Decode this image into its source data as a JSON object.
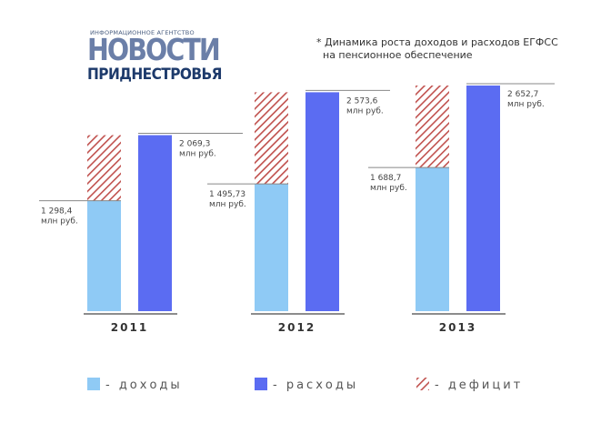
{
  "logo": {
    "small": "ИНФОРМАЦИОННОЕ АГЕНТСТВО",
    "big": "НОВОСТИ",
    "sub": "ПРИДНЕСТРОВЬЯ"
  },
  "subtitle": {
    "line1": "* Динамика роста доходов и расходов ЕГФСС",
    "line2": "на пенсионное обеспечение"
  },
  "chart_data": {
    "type": "bar",
    "categories": [
      "2011",
      "2012",
      "2013"
    ],
    "series": [
      {
        "name": "доходы",
        "values": [
          1298.4,
          1495.73,
          1688.7
        ],
        "color": "#8fcaf5",
        "labels": [
          "1 298,4",
          "1 495,73",
          "1 688,7"
        ]
      },
      {
        "name": "расходы",
        "values": [
          2069.3,
          2573.6,
          2652.7
        ],
        "color": "#5b6cf2",
        "labels": [
          "2 069,3",
          "2 573,6",
          "2 652,7"
        ]
      },
      {
        "name": "дефицит",
        "values": [
          770.9,
          1077.87,
          964.0
        ],
        "color": "#c0504d",
        "pattern": "hatched",
        "stacked_on": "доходы"
      }
    ],
    "unit_label": "млн руб.",
    "ylim": [
      0,
      2700
    ],
    "grid": false,
    "legend": "bottom"
  },
  "legend": [
    {
      "label": "- доходы",
      "color": "#8fcaf5",
      "pattern": "solid"
    },
    {
      "label": "- расходы",
      "color": "#5b6cf2",
      "pattern": "solid"
    },
    {
      "label": "- дефицит",
      "color": "#c0504d",
      "pattern": "hatched"
    }
  ]
}
